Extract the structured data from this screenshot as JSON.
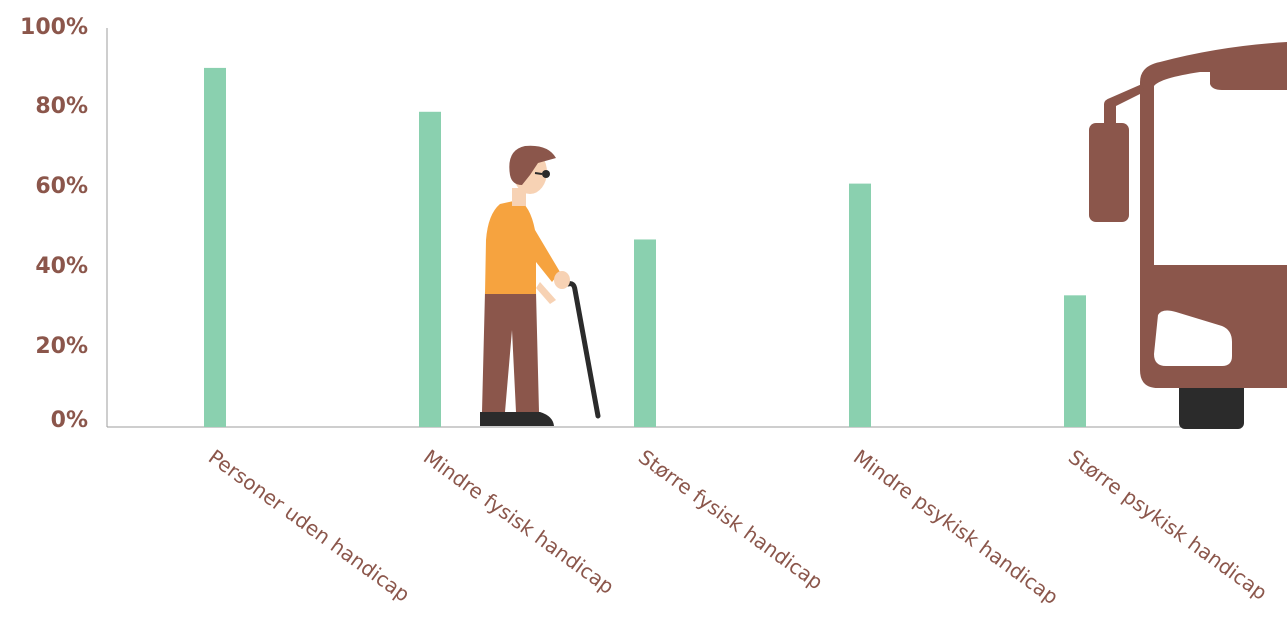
{
  "chart_data": {
    "type": "bar",
    "categories": [
      "Personer uden handicap",
      "Mindre fysisk handicap",
      "Større fysisk handicap",
      "Mindre psykisk handicap",
      "Større psykisk handicap"
    ],
    "values": [
      90,
      79,
      47,
      61,
      33
    ],
    "yticks": [
      "0%",
      "20%",
      "40%",
      "60%",
      "80%",
      "100%"
    ],
    "ylim": [
      0,
      100
    ],
    "grid": false,
    "legend": "none"
  },
  "colors": {
    "bar": "#8ad0af",
    "text": "#8b564b",
    "axis": "#9e9e9e",
    "bus": "#8b564b",
    "shirt": "#f6a33f",
    "trousers": "#8b564b",
    "skin": "#f7d2b4",
    "shoes": "#2b2b2b"
  },
  "illustrations": {
    "person": "person-with-cane-icon",
    "bus": "bus-icon"
  }
}
